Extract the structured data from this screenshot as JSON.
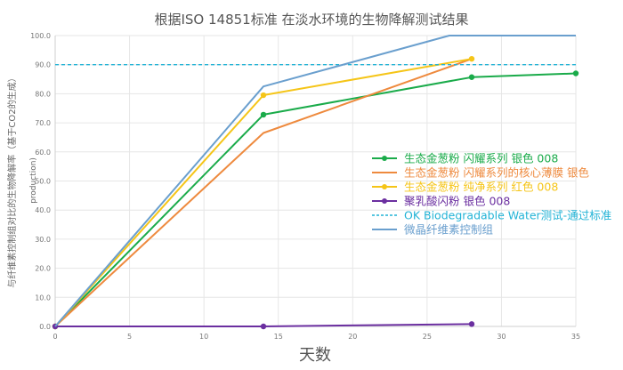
{
  "chart_data": {
    "type": "line",
    "title": "根据ISO 14851标准 在淡水环境的生物降解测试结果",
    "xlabel": "天数",
    "ylabel": "与纤维素控制组对比的生物降解率（基于CO2的生成）",
    "ylabel_inner": "production)",
    "xlim": [
      0,
      35
    ],
    "ylim": [
      0,
      100
    ],
    "x_ticks": [
      "0",
      "5",
      "10",
      "15",
      "20",
      "25",
      "30",
      "35"
    ],
    "y_ticks": [
      "0.0",
      "10.0",
      "20.0",
      "30.0",
      "40.0",
      "50.0",
      "60.0",
      "70.0",
      "80.0",
      "90.0",
      "100.0"
    ],
    "legend_position": "right",
    "series": [
      {
        "name": "生态金葱粉 闪耀系列 银色 008",
        "color": "#1aab4a",
        "markers": true,
        "points": [
          [
            0,
            0
          ],
          [
            14,
            72.8
          ],
          [
            28,
            85.7
          ],
          [
            35,
            87.0
          ]
        ]
      },
      {
        "name": "生态金葱粉 闪耀系列的核心薄膜 银色",
        "color": "#ee8a3e",
        "markers": false,
        "points": [
          [
            0,
            0
          ],
          [
            14,
            66.5
          ],
          [
            28,
            92.0
          ]
        ]
      },
      {
        "name": "生态金葱粉 纯净系列 红色 008",
        "color": "#f5c518",
        "markers": true,
        "points": [
          [
            0,
            0
          ],
          [
            14,
            79.5
          ],
          [
            28,
            92.0
          ]
        ]
      },
      {
        "name": "聚乳酸闪粉 银色 008",
        "color": "#6b2fa0",
        "markers": true,
        "points": [
          [
            0,
            0
          ],
          [
            14,
            0
          ],
          [
            28,
            0.8
          ]
        ]
      },
      {
        "name": "OK Biodegradable Water测试-通过标准",
        "color": "#22b3d6",
        "dashed": true,
        "points": [
          [
            0,
            90
          ],
          [
            35,
            90
          ]
        ]
      },
      {
        "name": "微晶纤维素控制组",
        "color": "#6a9fce",
        "markers": false,
        "points": [
          [
            0,
            0
          ],
          [
            14,
            82.5
          ],
          [
            26.5,
            100
          ],
          [
            35,
            100
          ]
        ]
      }
    ]
  }
}
